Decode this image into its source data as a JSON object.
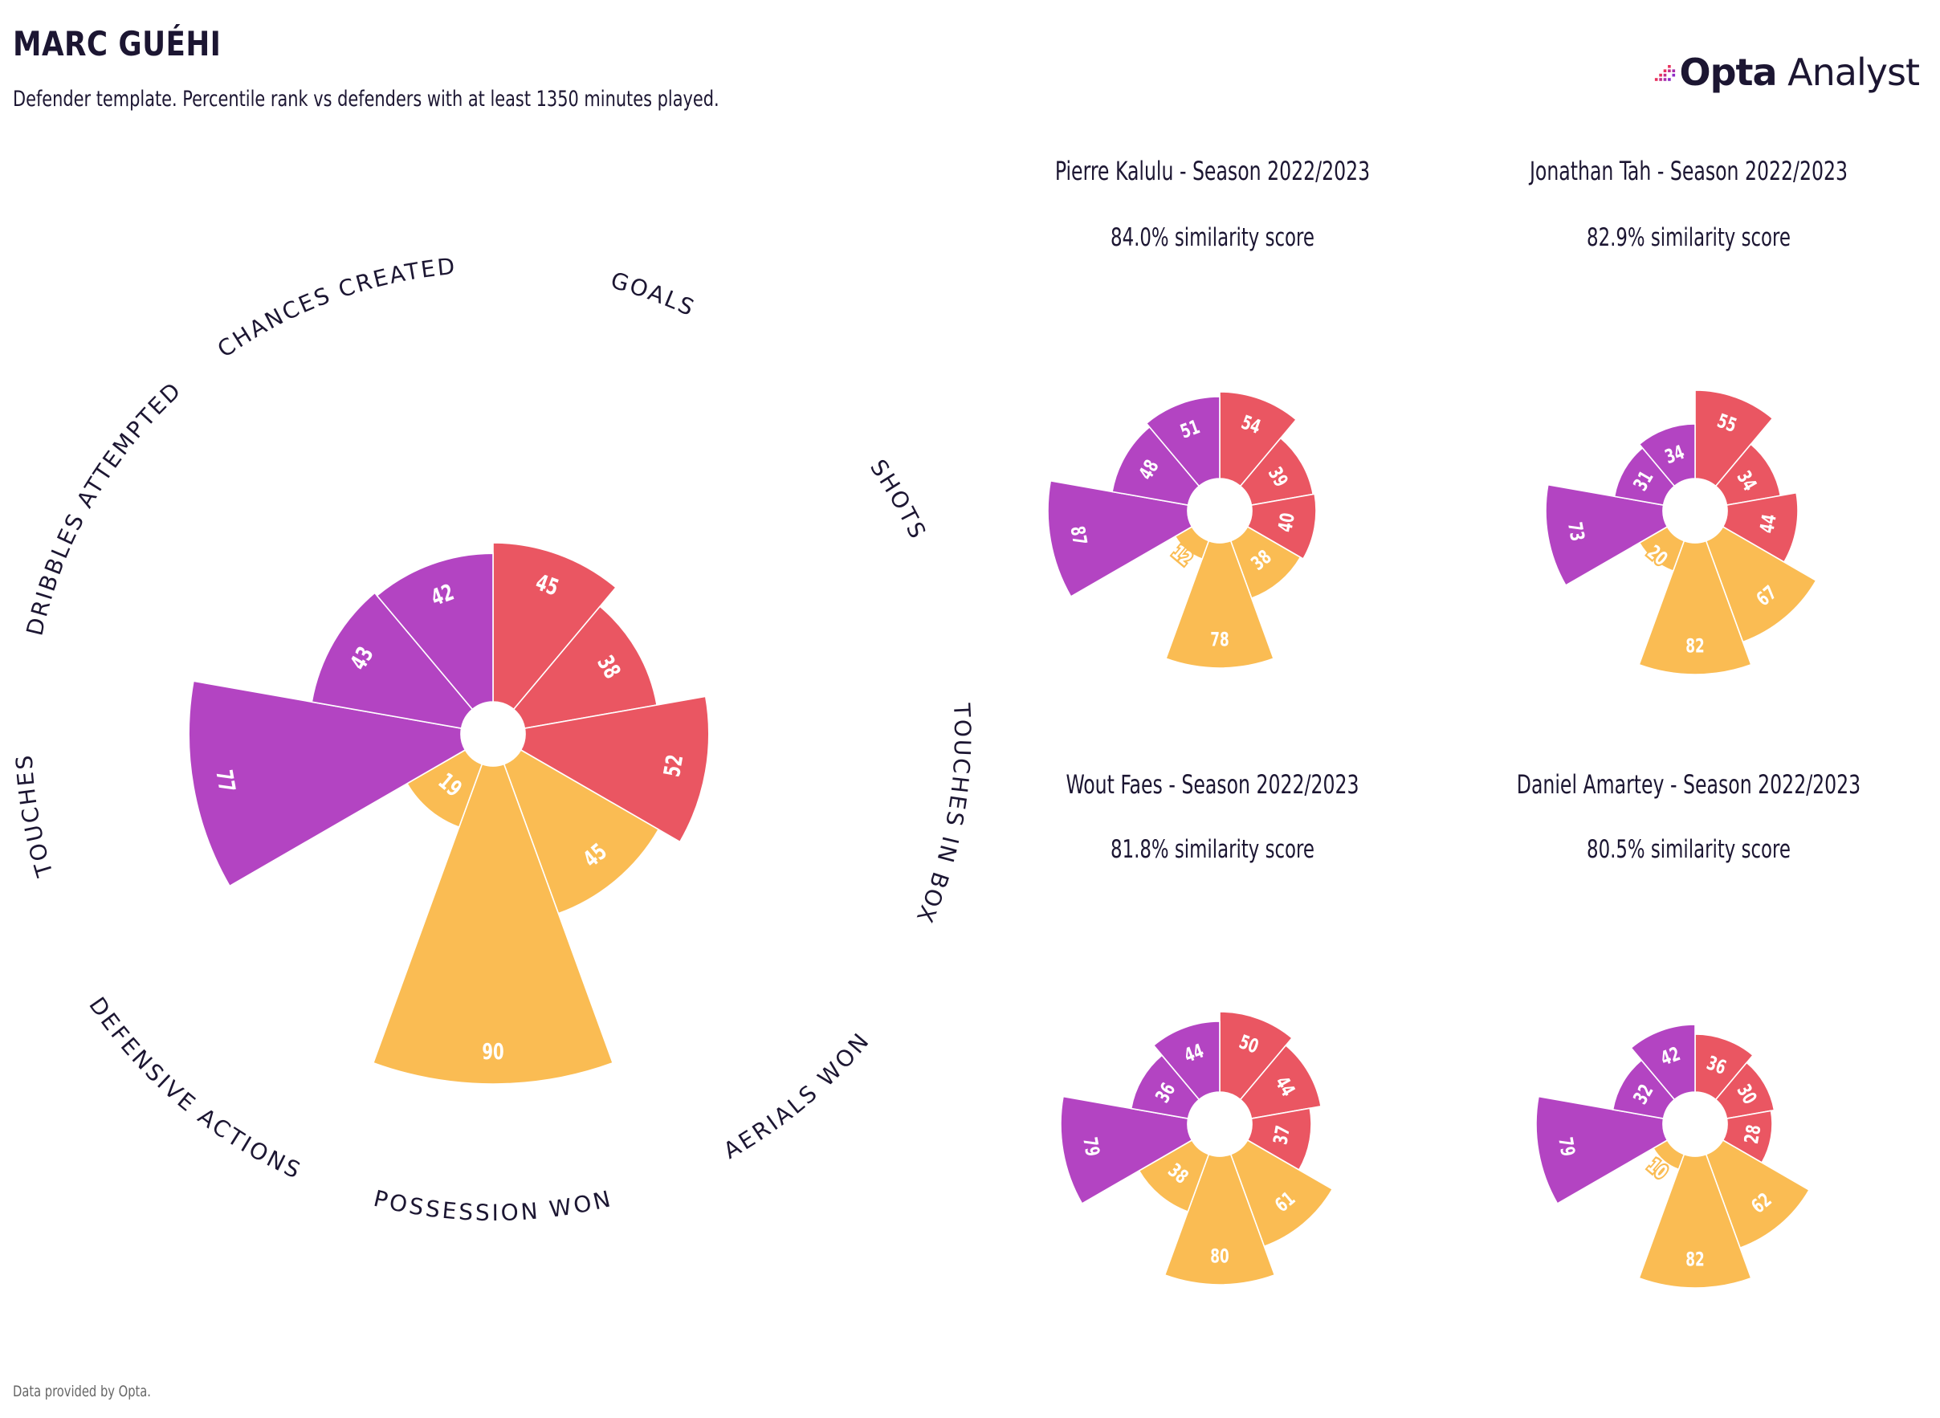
{
  "header": {
    "title": "MARC GUÉHI",
    "subtitle": "Defender template. Percentile rank vs defenders with at least 1350 minutes played."
  },
  "brand": {
    "name_bold": "Opta",
    "name_regular": " Analyst"
  },
  "footer": "Data provided by Opta.",
  "colors": {
    "attacking": "#ea5662",
    "defending": "#fabc53",
    "possession": "#b344c2",
    "logo_pink": "#e8325c",
    "logo_purple": "#8e2bc7",
    "text": "#1c1632"
  },
  "chart_data": [
    {
      "type": "polar-bar",
      "player": "Marc Guéhi",
      "categories": [
        "GOALS",
        "SHOTS",
        "TOUCHES IN BOX",
        "AERIALS WON",
        "POSSESSION WON",
        "DEFENSIVE ACTIONS",
        "TOUCHES",
        "DRIBBLES ATTEMPTED",
        "CHANCES CREATED"
      ],
      "category_groups": [
        "attacking",
        "attacking",
        "attacking",
        "defending",
        "defending",
        "defending",
        "possession",
        "possession",
        "possession"
      ],
      "values": [
        45,
        38,
        52,
        45,
        90,
        19,
        77,
        43,
        42
      ],
      "ylim": [
        0,
        100
      ]
    },
    {
      "type": "polar-bar",
      "title": "Pierre Kalulu - Season 2022/2023",
      "subtitle": "84.0% similarity score",
      "values": [
        54,
        39,
        40,
        38,
        78,
        12,
        87,
        48,
        51
      ],
      "ylim": [
        0,
        100
      ]
    },
    {
      "type": "polar-bar",
      "title": "Jonathan Tah - Season 2022/2023",
      "subtitle": "82.9% similarity score",
      "values": [
        55,
        34,
        44,
        67,
        82,
        20,
        73,
        31,
        34
      ],
      "ylim": [
        0,
        100
      ]
    },
    {
      "type": "polar-bar",
      "title": "Wout Faes - Season 2022/2023",
      "subtitle": "81.8% similarity score",
      "values": [
        50,
        44,
        37,
        61,
        80,
        38,
        79,
        36,
        44
      ],
      "ylim": [
        0,
        100
      ]
    },
    {
      "type": "polar-bar",
      "title": "Daniel Amartey - Season 2022/2023",
      "subtitle": "80.5% similarity score",
      "values": [
        36,
        30,
        28,
        62,
        82,
        10,
        79,
        32,
        42
      ],
      "ylim": [
        0,
        100
      ]
    }
  ]
}
